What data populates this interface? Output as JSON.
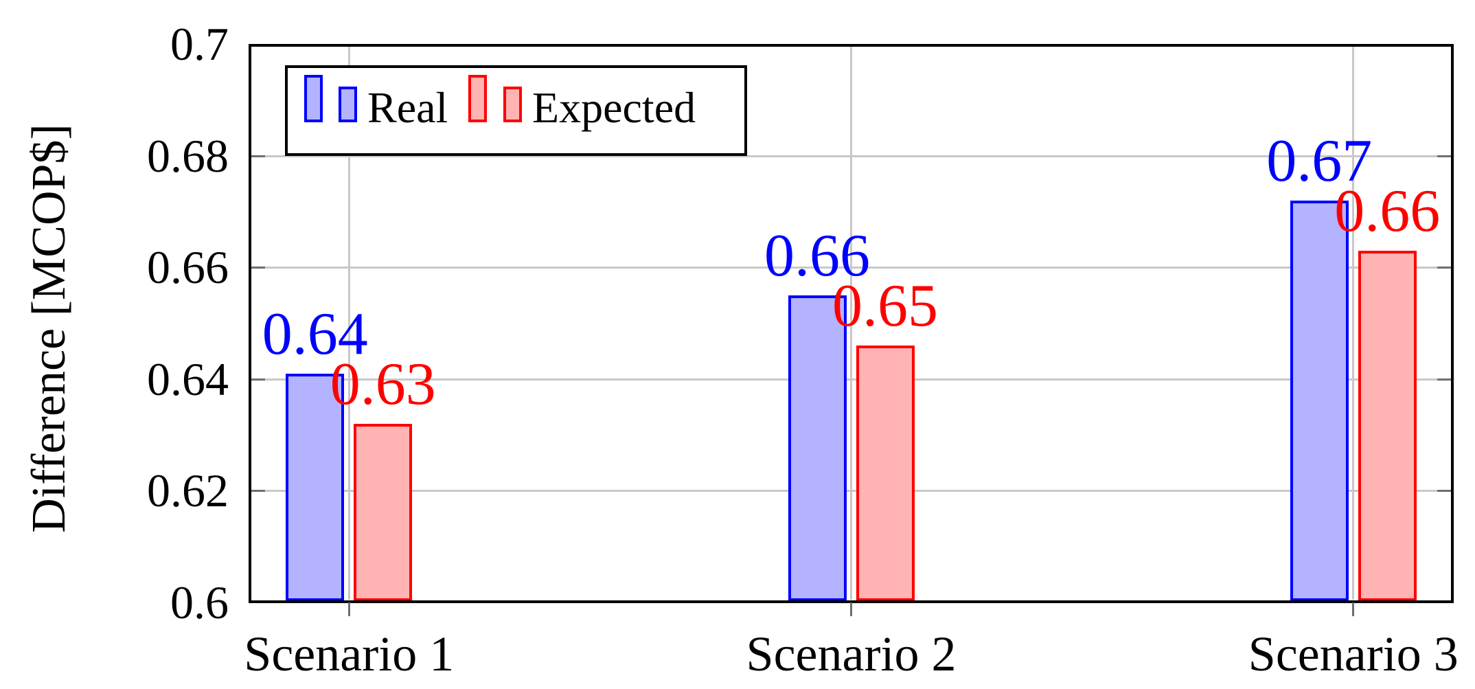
{
  "chart_data": {
    "type": "bar",
    "title": "",
    "categories": [
      "Scenario 1",
      "Scenario 2",
      "Scenario 3"
    ],
    "series": [
      {
        "name": "Real",
        "border_color": "#0000ff",
        "fill_color": "#b3b3ff",
        "values": [
          0.641,
          0.655,
          0.672
        ],
        "value_labels": [
          "0.64",
          "0.66",
          "0.67"
        ]
      },
      {
        "name": "Expected",
        "border_color": "#ff0000",
        "fill_color": "#ffb3b3",
        "values": [
          0.632,
          0.646,
          0.663
        ],
        "value_labels": [
          "0.63",
          "0.65",
          "0.66"
        ]
      }
    ],
    "xlabel": "",
    "ylabel": "Difference [MCOP$]",
    "ylim": [
      0.6,
      0.7
    ],
    "yticks": [
      0.6,
      0.62,
      0.64,
      0.66,
      0.68,
      0.7
    ],
    "ytick_labels": [
      "0.6",
      "0.62",
      "0.64",
      "0.66",
      "0.68",
      "0.7"
    ],
    "grid": "both",
    "legend_position": "top-left"
  },
  "colors": {
    "axis_line": "#000000",
    "grid_line": "#c8c8c8",
    "tick_mark": "#6e6e6e",
    "background": "#ffffff",
    "real_value_label": "#0000ff",
    "expected_value_label": "#ff0000"
  }
}
